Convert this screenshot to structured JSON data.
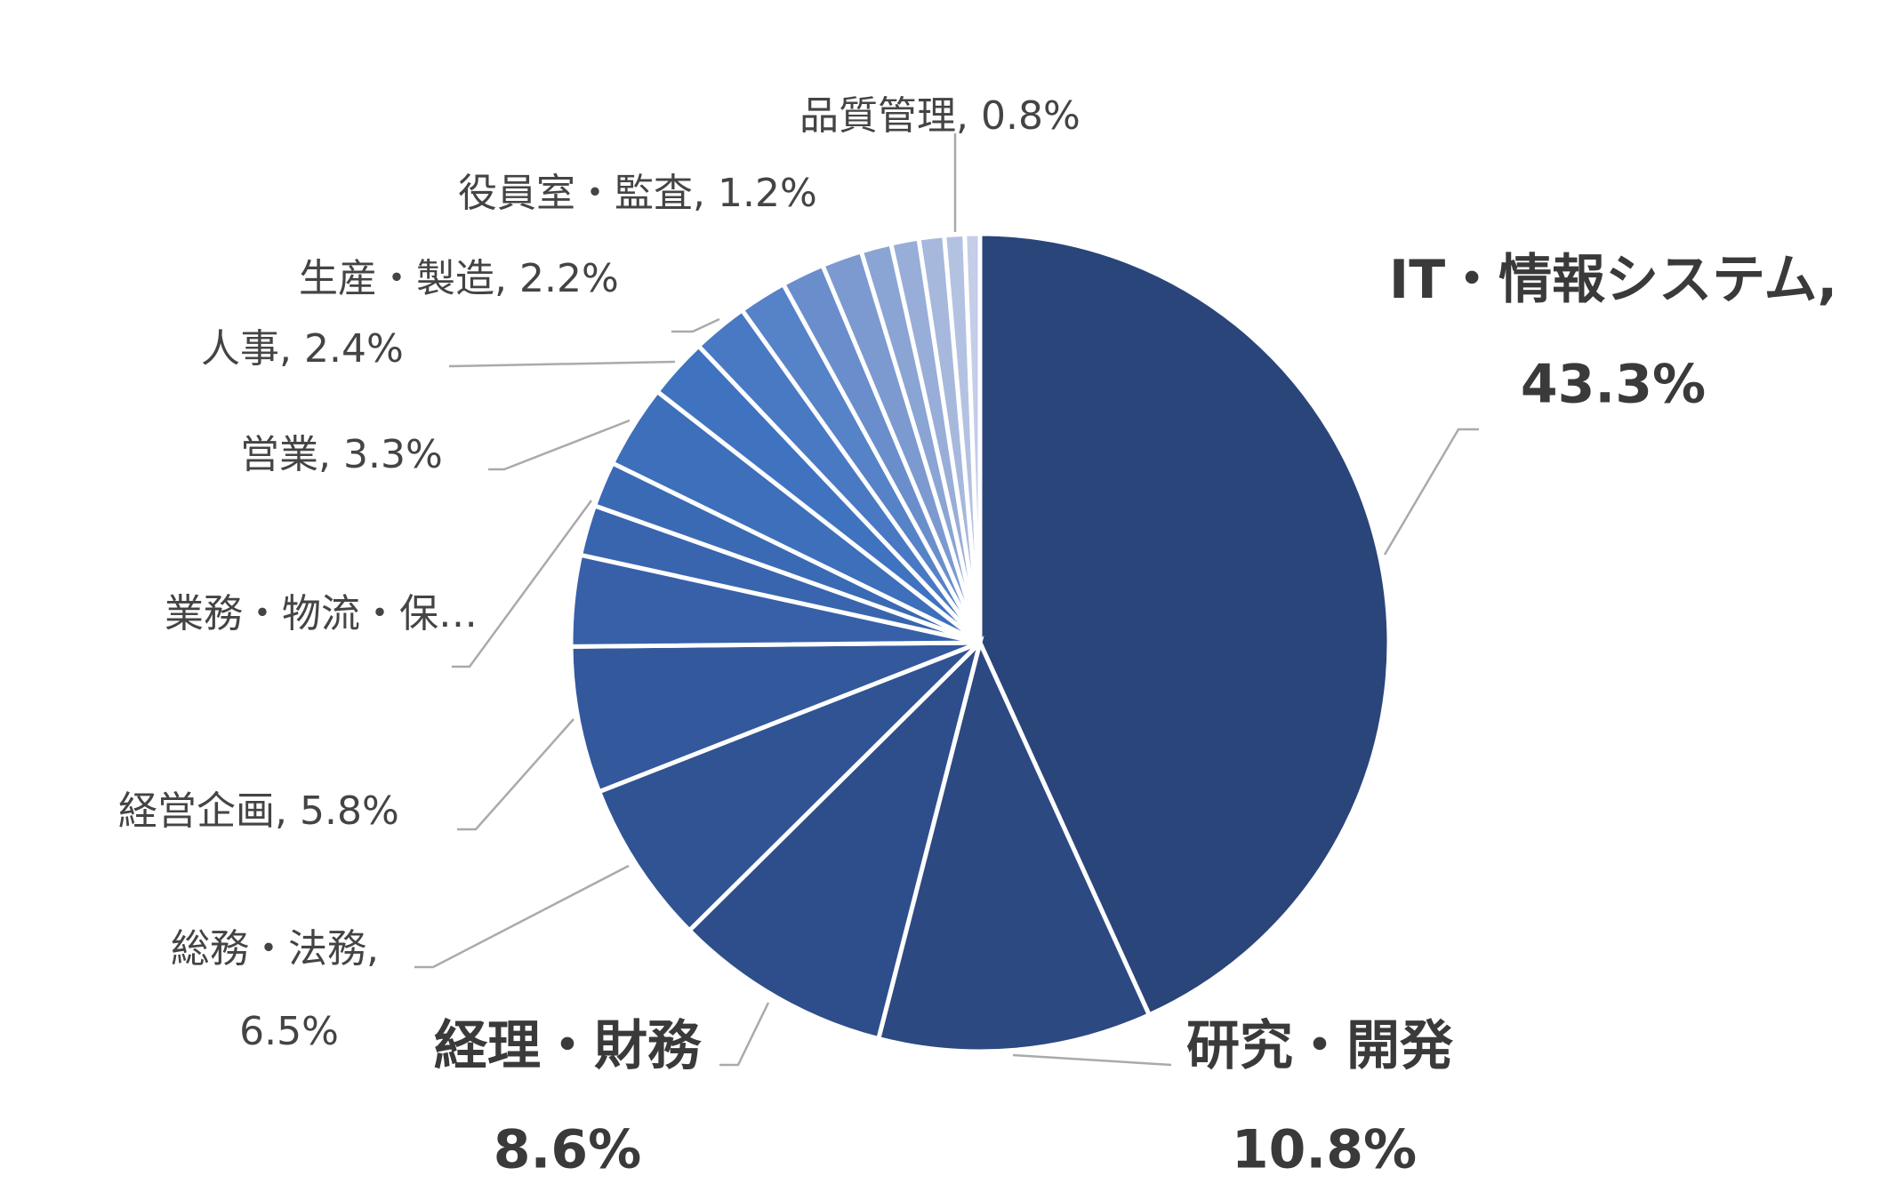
{
  "chart_data": {
    "type": "pie",
    "categories": [
      "IT・情報システム,",
      "研究・開発",
      "経理・財務",
      "総務・法務,",
      "経営企画,",
      "業務・物流・保…",
      null,
      null,
      "営業,",
      "人事,",
      "生産・製造,",
      null,
      null,
      null,
      "役員室・監査,",
      null,
      null,
      "品質管理,",
      null
    ],
    "values": [
      43.3,
      10.8,
      8.6,
      6.5,
      5.8,
      3.6,
      2.0,
      1.8,
      3.3,
      2.4,
      2.2,
      1.9,
      1.7,
      1.6,
      1.2,
      1.1,
      1.0,
      0.8,
      0.6
    ],
    "value_labels": [
      "43.3%",
      "10.8%",
      "8.6%",
      "6.5%",
      "5.8%",
      null,
      null,
      null,
      "3.3%",
      "2.4%",
      "2.2%",
      null,
      null,
      null,
      "1.2%",
      null,
      null,
      "0.8%",
      null
    ],
    "colors": [
      "#2a4579",
      "#2c4982",
      "#2e4e8b",
      "#305393",
      "#33589c",
      "#3760a8",
      "#3965ae",
      "#3b6ab4",
      "#3d6fba",
      "#3f73c0",
      "#4a79c4",
      "#5682c8",
      "#6a8ecc",
      "#7c9ad0",
      "#8aa4d4",
      "#98aed8",
      "#a6b8dc",
      "#b4c2e2",
      "#c4cee8"
    ]
  }
}
